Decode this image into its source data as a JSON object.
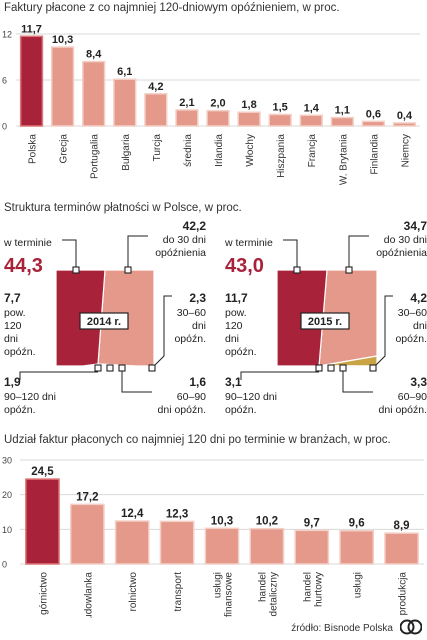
{
  "colors": {
    "highlight": "#a8233a",
    "bar": "#e4998a",
    "bar_edge": "#f3cfc6",
    "grid": "#d8d8d8",
    "wedge_gold": "#c9a445",
    "wedge_gold_light": "#dcc07a"
  },
  "chart_data": [
    {
      "type": "bar",
      "title": "Faktury płacone z co najmniej 120-dniowym opóźnieniem, w proc.",
      "categories": [
        "Polska",
        "Grecja",
        "Portugalia",
        "Bułgaria",
        "Turcja",
        "średnia",
        "Irlandia",
        "Włochy",
        "Hiszpania",
        "Francja",
        "W. Brytania",
        "Finlandia",
        "Niemcy"
      ],
      "values": [
        11.7,
        10.3,
        8.4,
        6.1,
        4.2,
        2.1,
        2.0,
        1.8,
        1.5,
        1.4,
        1.1,
        0.6,
        0.4
      ],
      "value_labels": [
        "11,7",
        "10,3",
        "8,4",
        "6,1",
        "4,2",
        "2,1",
        "2,0",
        "1,8",
        "1,5",
        "1,4",
        "1,1",
        "0,6",
        "0,4"
      ],
      "yticks": [
        "0",
        "6",
        "12"
      ],
      "ylim": [
        0,
        12
      ],
      "highlight_index": 0,
      "grid": true
    },
    {
      "type": "pie",
      "title": "Struktura terminów płatności w Polsce, w proc.",
      "charts": [
        {
          "year_label": "2014 r.",
          "slices": [
            {
              "name": "w terminie",
              "value": 44.3,
              "label": "44,3"
            },
            {
              "name": "do 30 dni opóźnienia",
              "value": 42.2,
              "label": "42,2"
            },
            {
              "name": "30–60 dni opóźn.",
              "value": 2.3,
              "label": "2,3"
            },
            {
              "name": "60–90 dni opóźn.",
              "value": 1.6,
              "label": "1,6"
            },
            {
              "name": "90–120 dni opóźn.",
              "value": 1.9,
              "label": "1,9"
            },
            {
              "name": "pow. 120 dni opóźn.",
              "value": 7.7,
              "label": "7,7"
            }
          ]
        },
        {
          "year_label": "2015 r.",
          "slices": [
            {
              "name": "w terminie",
              "value": 43.0,
              "label": "43,0"
            },
            {
              "name": "do 30 dni opóźnienia",
              "value": 34.7,
              "label": "34,7"
            },
            {
              "name": "30–60 dni opóźn.",
              "value": 4.2,
              "label": "4,2"
            },
            {
              "name": "60–90 dni opóźn.",
              "value": 3.3,
              "label": "3,3"
            },
            {
              "name": "90–120 dni opóźn.",
              "value": 3.1,
              "label": "3,1"
            },
            {
              "name": "pow. 120 dni opóźn.",
              "value": 11.7,
              "label": "11,7"
            }
          ]
        }
      ],
      "text": {
        "on_time": "w terminie",
        "upto30_a": "do 30 dni",
        "upto30_b": "opóźnienia",
        "d3060_a": "30–60",
        "d3060_b": "dni",
        "d3060_c": "opóźn.",
        "over120_a": "pow.",
        "over120_b": "120",
        "over120_c": "dni",
        "over120_d": "opóźn.",
        "d90120_a": "90–120 dni",
        "d90120_b": "opóźn.",
        "d6090_a": "60–90",
        "d6090_b": "dni opóźn."
      }
    },
    {
      "type": "bar",
      "title": "Udział faktur płaconych co najmniej 120 dni po terminie w branżach, w proc.",
      "categories": [
        "górnictwo",
        "budowlanka",
        "rolnictwo",
        "transport",
        "usługi finansowe",
        "handel detaliczny",
        "handel hurtowy",
        "usługi",
        "produkcja"
      ],
      "category_lines": [
        [
          "górnictwo"
        ],
        [
          "budowlanka"
        ],
        [
          "rolnictwo"
        ],
        [
          "transport"
        ],
        [
          "usługi",
          "finansowe"
        ],
        [
          "handel",
          "detaliczny"
        ],
        [
          "handel",
          "hurtowy"
        ],
        [
          "usługi"
        ],
        [
          "produkcja"
        ]
      ],
      "values": [
        24.5,
        17.2,
        12.4,
        12.3,
        10.3,
        10.2,
        9.7,
        9.6,
        8.9
      ],
      "value_labels": [
        "24,5",
        "17,2",
        "12,4",
        "12,3",
        "10,3",
        "10,2",
        "9,7",
        "9,6",
        "8,9"
      ],
      "yticks": [
        "0",
        "10",
        "20",
        "30"
      ],
      "ylim": [
        0,
        30
      ],
      "highlight_index": 0,
      "grid": true
    }
  ],
  "source": "źródło: Bisnode Polska",
  "logo": "CP"
}
